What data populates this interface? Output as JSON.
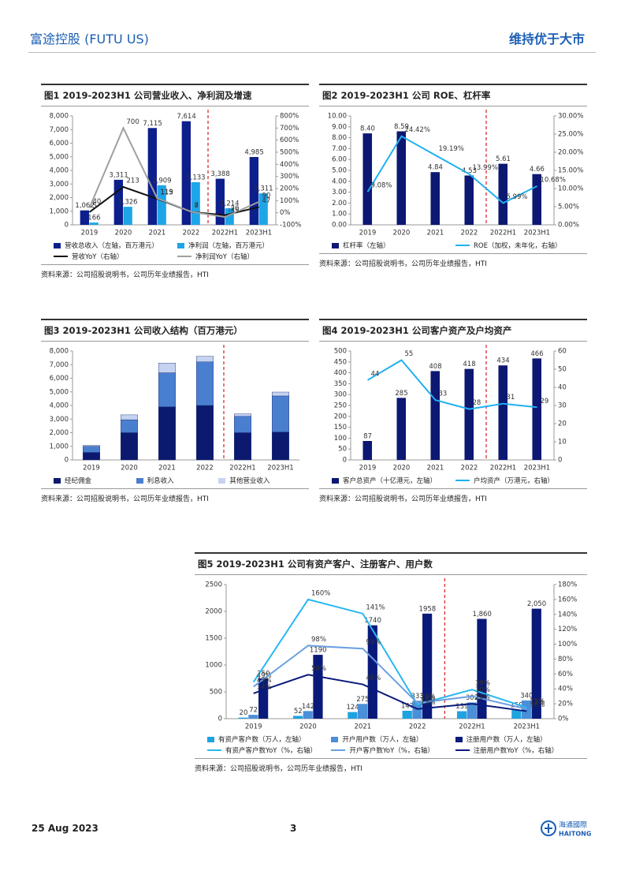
{
  "header": {
    "company": "富途控股 (FUTU US)",
    "rating": "维持优于大市"
  },
  "chart_data": [
    {
      "type": "combo",
      "title": "图1  2019-2023H1 公司营业收入、净利润及增速",
      "source": "资料来源：公司招股说明书，公司历年业绩报告，HTI",
      "data_labels": true,
      "categories": [
        "2019",
        "2020",
        "2021",
        "2022",
        "2022H1",
        "2023H1"
      ],
      "series": [
        {
          "name": "营收总收入（左轴，百万港元）",
          "type": "bar",
          "color": "#0d1f8c",
          "values": [
            1062,
            3311,
            7115,
            7614,
            3388,
            4985
          ],
          "value_labels": [
            "1,062",
            "3,311",
            "7,115",
            "7,614",
            "3,388",
            "4,985"
          ]
        },
        {
          "name": "净利润（左轴，百万港元）",
          "type": "bar",
          "color": "#1ea5e8",
          "values": [
            166,
            1326,
            2909,
            3133,
            1214,
            2311
          ],
          "value_labels": [
            "166",
            "1,326",
            "2,909",
            "3,133",
            "1,214",
            "2,311"
          ]
        },
        {
          "name": "营收YoY（右轴）",
          "type": "line",
          "axis": "y2",
          "color": "#111111",
          "values": [
            5,
            213,
            115,
            7,
            -20,
            47
          ]
        },
        {
          "name": "净利润YoY（右轴）",
          "type": "line",
          "axis": "y2",
          "color": "#a0a0a0",
          "values": [
            40,
            700,
            119,
            8,
            -35,
            90
          ]
        }
      ],
      "ylim": [
        0,
        8000
      ],
      "yticks": [
        0,
        {
          "value": 1000,
          "label": "1,000"
        },
        {
          "value": 2000,
          "label": "2,000"
        },
        {
          "value": 3000,
          "label": "3,000"
        },
        {
          "value": 4000,
          "label": "4,000"
        },
        {
          "value": 5000,
          "label": "5,000"
        },
        {
          "value": 6000,
          "label": "6,000"
        },
        {
          "value": 7000,
          "label": "7,000"
        },
        {
          "value": 8000,
          "label": "8,000"
        }
      ],
      "y2lim": [
        -100,
        800
      ],
      "y2ticks": [
        {
          "value": -100,
          "label": "-100%"
        },
        {
          "value": 0,
          "label": "0%"
        },
        {
          "value": 100,
          "label": "100%"
        },
        {
          "value": 200,
          "label": "200%"
        },
        {
          "value": 300,
          "label": "300%"
        },
        {
          "value": 400,
          "label": "400%"
        },
        {
          "value": 500,
          "label": "500%"
        },
        {
          "value": 600,
          "label": "600%"
        },
        {
          "value": 700,
          "label": "700%"
        },
        {
          "value": 800,
          "label": "800%"
        }
      ]
    },
    {
      "type": "combo",
      "title": "图2  2019-2023H1 公司 ROE、杠杆率",
      "source": "资料来源：公司招股说明书，公司历年业绩报告，HTI",
      "data_labels": true,
      "categories": [
        "2019",
        "2020",
        "2021",
        "2022",
        "2022H1",
        "2023H1"
      ],
      "series": [
        {
          "name": "杠杆率（左轴）",
          "type": "bar",
          "color": "#0d1873",
          "values": [
            8.4,
            8.59,
            4.84,
            4.53,
            5.61,
            4.66
          ],
          "value_labels": [
            "8.40",
            "8.59",
            "4.84",
            "4.53",
            "5.61",
            "4.66"
          ]
        },
        {
          "name": "ROE（加权，未年化，右轴）",
          "type": "line",
          "axis": "y2",
          "color": "#1fb0f0",
          "values": [
            9.08,
            24.42,
            19.19,
            13.99,
            5.99,
            10.68
          ],
          "value_labels": [
            "9.08%",
            "24.42%",
            "19.19%",
            "13.99%",
            "5.99%",
            "10.68%"
          ]
        }
      ],
      "ylim": [
        0,
        10
      ],
      "yticks": [
        {
          "value": 0,
          "label": "0.00"
        },
        {
          "value": 1,
          "label": "1.00"
        },
        {
          "value": 2,
          "label": "2.00"
        },
        {
          "value": 3,
          "label": "3.00"
        },
        {
          "value": 4,
          "label": "4.00"
        },
        {
          "value": 5,
          "label": "5.00"
        },
        {
          "value": 6,
          "label": "6.00"
        },
        {
          "value": 7,
          "label": "7.00"
        },
        {
          "value": 8,
          "label": "8.00"
        },
        {
          "value": 9,
          "label": "9.00"
        },
        {
          "value": 10,
          "label": "10.00"
        }
      ],
      "y2lim": [
        0,
        30
      ],
      "y2ticks": [
        {
          "value": 0,
          "label": "0.00%"
        },
        {
          "value": 5,
          "label": "5.00%"
        },
        {
          "value": 10,
          "label": "10.00%"
        },
        {
          "value": 15,
          "label": "15.00%"
        },
        {
          "value": 20,
          "label": "20.00%"
        },
        {
          "value": 25,
          "label": "25.00%"
        },
        {
          "value": 30,
          "label": "30.00%"
        }
      ]
    },
    {
      "type": "stacked_bar",
      "title": "图3  2019-2023H1 公司收入结构（百万港元）",
      "source": "资料来源：公司招股说明书，公司历年业绩报告，HTI",
      "data_labels": false,
      "categories": [
        "2019",
        "2020",
        "2021",
        "2022",
        "2022H1",
        "2023H1"
      ],
      "series": [
        {
          "name": "经纪佣金",
          "type": "bar",
          "color": "#0b1a6e",
          "values": [
            550,
            2000,
            3900,
            4000,
            2000,
            2050
          ]
        },
        {
          "name": "利息收入",
          "type": "bar",
          "color": "#4a7fd0",
          "values": [
            450,
            950,
            2500,
            3200,
            1200,
            2650
          ]
        },
        {
          "name": "其他营业收入",
          "type": "bar",
          "color": "#c5d3f0",
          "values": [
            62,
            360,
            715,
            414,
            188,
            285
          ]
        }
      ],
      "ylim": [
        0,
        8000
      ],
      "yticks": [
        0,
        {
          "value": 1000,
          "label": "1,000"
        },
        {
          "value": 2000,
          "label": "2,000"
        },
        {
          "value": 3000,
          "label": "3,000"
        },
        {
          "value": 4000,
          "label": "4,000"
        },
        {
          "value": 5000,
          "label": "5,000"
        },
        {
          "value": 6000,
          "label": "6,000"
        },
        {
          "value": 7000,
          "label": "7,000"
        },
        {
          "value": 8000,
          "label": "8,000"
        }
      ]
    },
    {
      "type": "combo",
      "title": "图4  2019-2023H1 公司客户资产及户均资产",
      "source": "资料来源：公司招股说明书，公司历年业绩报告，HTI",
      "data_labels": true,
      "categories": [
        "2019",
        "2020",
        "2021",
        "2022",
        "2022H1",
        "2023H1"
      ],
      "series": [
        {
          "name": "客户总资产（十亿港元，左轴）",
          "type": "bar",
          "color": "#0d1873",
          "values": [
            87,
            285,
            408,
            418,
            434,
            466
          ]
        },
        {
          "name": "户均资产（万港元，右轴）",
          "type": "line",
          "axis": "y2",
          "color": "#1fb0f0",
          "values": [
            44,
            55,
            33,
            28,
            31,
            29
          ]
        }
      ],
      "ylim": [
        0,
        500
      ],
      "yticks": [
        0,
        50,
        100,
        150,
        200,
        250,
        300,
        350,
        400,
        450,
        500
      ],
      "y2lim": [
        0,
        60
      ],
      "y2ticks": [
        0,
        10,
        20,
        30,
        40,
        50,
        60
      ]
    },
    {
      "type": "combo",
      "title": "图5  2019-2023H1 公司有资产客户、注册客户、用户数",
      "source": "资料来源：公司招股说明书，公司历年业绩报告，HTI",
      "data_labels": true,
      "categories": [
        "2019",
        "2020",
        "2021",
        "2022",
        "2022H1",
        "2023H1"
      ],
      "series": [
        {
          "name": "有资产客户数（万人，左轴）",
          "type": "bar",
          "color": "#1fa3e0",
          "values": [
            20,
            52,
            124,
            147,
            139,
            159
          ]
        },
        {
          "name": "开户用户数（万人，左轴）",
          "type": "bar",
          "color": "#4a8fd8",
          "values": [
            72,
            142,
            275,
            333,
            302,
            340
          ]
        },
        {
          "name": "注册用户数（万人，左轴）",
          "type": "bar",
          "color": "#0a1a7a",
          "values": [
            750,
            1190,
            1740,
            1958,
            1860,
            2050
          ],
          "value_labels": [
            "750",
            "1190",
            "1740",
            "1958",
            "1,860",
            "2,050"
          ]
        },
        {
          "name": "有资产客户数YoY（%，右轴）",
          "type": "line",
          "axis": "y2",
          "color": "#28b8f0",
          "values": [
            49,
            160,
            141,
            19,
            39,
            15
          ],
          "value_labels": [
            "49%",
            "160%",
            "141%",
            "19%",
            "39%",
            "15%"
          ]
        },
        {
          "name": "开户客户数YoY（%，右轴）",
          "type": "line",
          "axis": "y2",
          "color": "#6a9fe0",
          "values": [
            43,
            98,
            94,
            21,
            30,
            13
          ],
          "value_labels": [
            "43%",
            "98%",
            "94%",
            "21%",
            "30%",
            "13%"
          ]
        },
        {
          "name": "注册用户数YoY（%，右轴）",
          "type": "line",
          "axis": "y2",
          "color": "#0a1a7a",
          "values": [
            34,
            59,
            46,
            13,
            20,
            10
          ],
          "value_labels": [
            "34%",
            "59%",
            "46%",
            "13%",
            "20%",
            "10%"
          ]
        }
      ],
      "ylim": [
        0,
        2500
      ],
      "yticks": [
        0,
        500,
        1000,
        1500,
        2000,
        2500
      ],
      "y2lim": [
        0,
        180
      ],
      "y2ticks": [
        {
          "value": 0,
          "label": "0%"
        },
        {
          "value": 20,
          "label": "20%"
        },
        {
          "value": 40,
          "label": "40%"
        },
        {
          "value": 60,
          "label": "60%"
        },
        {
          "value": 80,
          "label": "80%"
        },
        {
          "value": 100,
          "label": "100%"
        },
        {
          "value": 120,
          "label": "120%"
        },
        {
          "value": 140,
          "label": "140%"
        },
        {
          "value": 160,
          "label": "160%"
        },
        {
          "value": 180,
          "label": "180%"
        }
      ]
    }
  ],
  "footer": {
    "date": "25 Aug 2023",
    "page": "3",
    "logo_cn": "海通國際",
    "logo_en": "HAITONG"
  }
}
